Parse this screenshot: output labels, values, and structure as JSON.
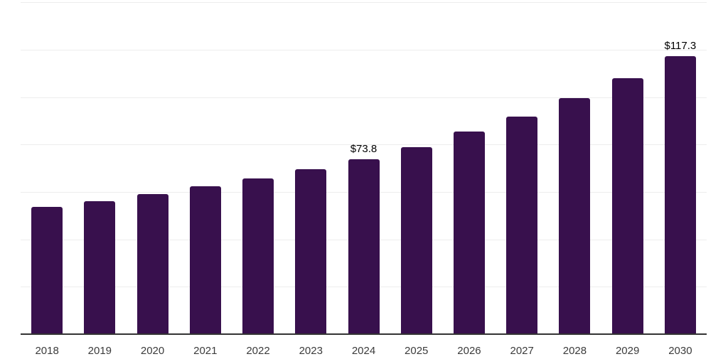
{
  "chart_data": {
    "type": "bar",
    "title": "",
    "categories": [
      "2018",
      "2019",
      "2020",
      "2021",
      "2022",
      "2023",
      "2024",
      "2025",
      "2026",
      "2027",
      "2028",
      "2029",
      "2030"
    ],
    "values": [
      53.7,
      56.2,
      59.2,
      62.3,
      65.6,
      69.5,
      73.8,
      79.0,
      85.4,
      91.7,
      99.5,
      108.0,
      117.3
    ],
    "data_labels": [
      "",
      "",
      "",
      "",
      "",
      "",
      "$73.8",
      "",
      "",
      "",
      "",
      "",
      "$117.3"
    ],
    "xlabel": "",
    "ylabel": "",
    "ylim": [
      0,
      140
    ],
    "grid_step": 20,
    "gridlines": "horizontal",
    "y_tick_labels_shown": false,
    "legend_position": "none",
    "colors": {
      "bar": "#38104d",
      "axis": "#333333",
      "gridline": "#ededed",
      "tick_label": "#3b3b3b",
      "data_label": "#000000",
      "background": "#ffffff"
    }
  }
}
